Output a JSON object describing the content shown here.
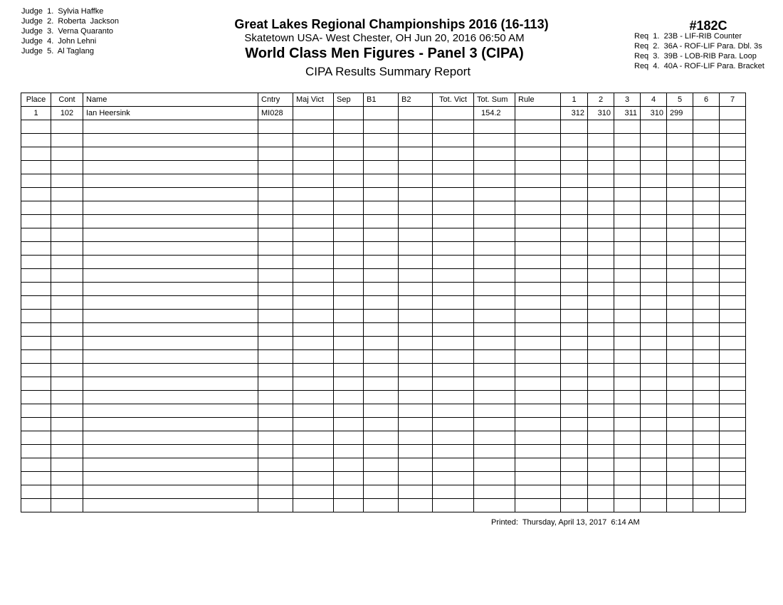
{
  "judges": [
    "Judge  1.  Sylvia Haffke",
    "Judge  2.  Roberta  Jackson",
    "Judge  3.  Verna Quaranto",
    "Judge  4.  John Lehni",
    "Judge  5.  Al Taglang"
  ],
  "header": {
    "competition": "Great Lakes Regional Championships 2016 (16-113)",
    "venue": "Skatetown USA- West Chester, OH  Jun 20, 2016  06:50 AM",
    "event_title": "World Class Men Figures - Panel 3 (CIPA)",
    "report_title": "CIPA Results Summary Report",
    "event_number": "#182C"
  },
  "requirements": [
    "Req  1.  23B - LIF-RIB Counter",
    "Req  2.  36A - ROF-LIF Para. Dbl. 3s",
    "Req  3.  39B - LOB-RIB Para. Loop",
    "Req  4.  40A - ROF-LIF Para. Bracket"
  ],
  "table": {
    "columns": [
      "Place",
      "Cont",
      "Name",
      "Cntry",
      "Maj Vict",
      "Sep",
      "B1",
      "B2",
      "Tot. Vict",
      "Tot. Sum",
      "Rule",
      "1",
      "2",
      "3",
      "4",
      "5",
      "6",
      "7"
    ],
    "rows": [
      [
        "1",
        "102",
        "Ian Heersink",
        "MI028",
        "",
        "",
        "",
        "",
        "",
        "154.2",
        "",
        "312",
        "310",
        "311",
        "310",
        "299",
        "",
        ""
      ]
    ],
    "empty_rows": 29
  },
  "printed": "Printed:  Thursday, April 13, 2017  6:14 AM"
}
